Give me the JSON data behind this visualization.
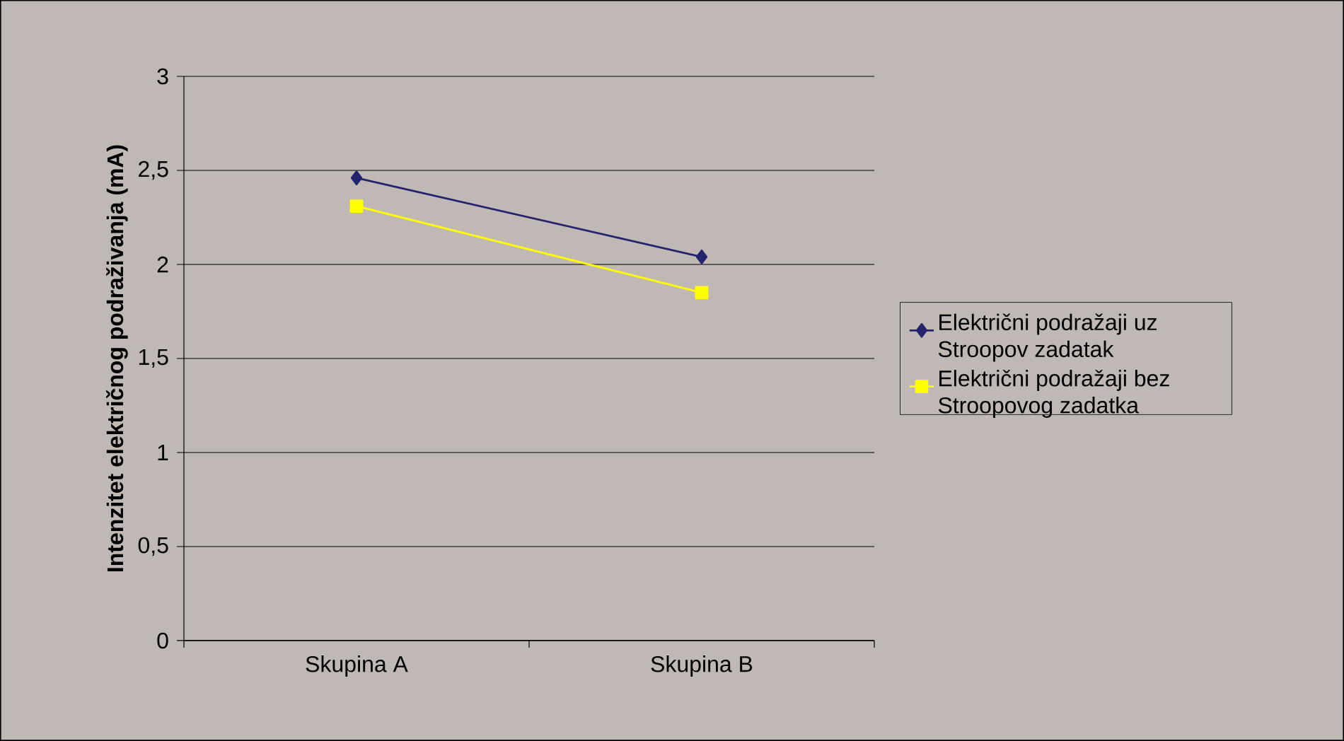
{
  "chart_data": {
    "type": "line",
    "ylabel": "Intenzitet električnog podraživanja (mA)",
    "categories": [
      "Skupina A",
      "Skupina B"
    ],
    "series": [
      {
        "name": "Električni podražaji uz Stroopov zadatak",
        "color": "#23236e",
        "marker": "diamond",
        "values": [
          2.46,
          2.04
        ]
      },
      {
        "name": "Električni podražaji bez Stroopovog zadatka",
        "color": "#ffff00",
        "marker": "square",
        "values": [
          2.31,
          1.85
        ]
      }
    ],
    "ylim": [
      0,
      3
    ],
    "yticks": [
      0,
      {
        "value": 0.5,
        "label": "0,5"
      },
      1,
      {
        "value": 1.5,
        "label": "1,5"
      },
      2,
      {
        "value": 2.5,
        "label": "2,5"
      },
      3
    ],
    "grid": "y",
    "legend": "right",
    "line_style": "solid"
  }
}
